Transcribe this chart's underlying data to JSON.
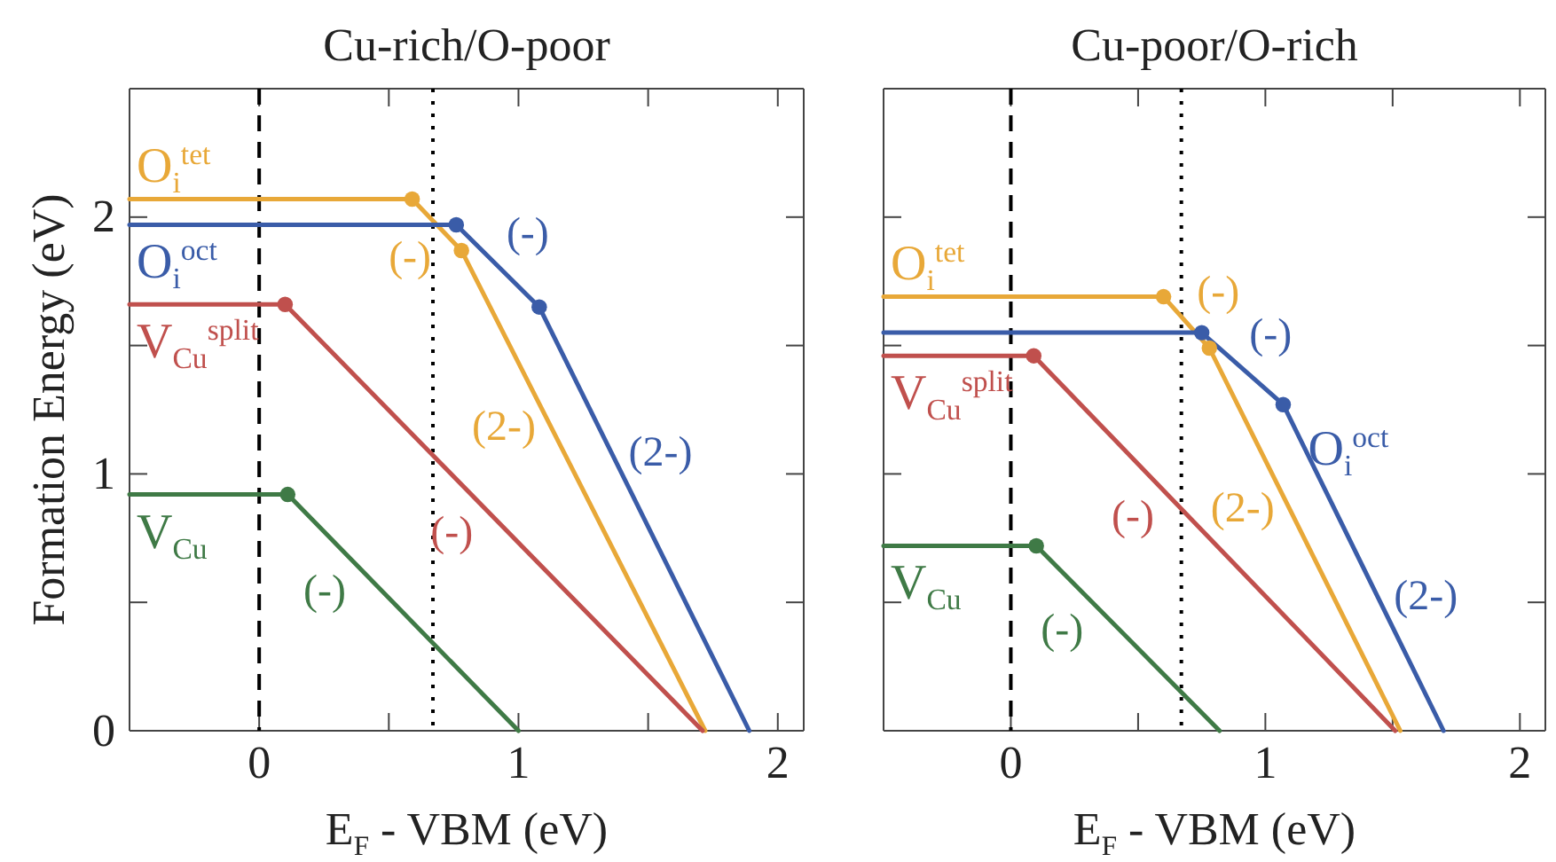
{
  "chart_data": [
    {
      "type": "line",
      "title": "Cu-rich/O-poor",
      "xlabel": "E$_{F}$ - VBM (eV)",
      "ylabel": "Formation Energy (eV)",
      "xlim": [
        -0.5,
        2.1
      ],
      "ylim": [
        0,
        2.5
      ],
      "xticks": [
        {
          "value": -0.5,
          "label": null
        },
        0,
        {
          "value": 0.5,
          "label": null
        },
        1,
        {
          "value": 1.5,
          "label": null
        },
        2
      ],
      "yticks": [
        0,
        {
          "value": 0.5,
          "label": null
        },
        1,
        {
          "value": 1.5,
          "label": null
        },
        2,
        {
          "value": 2.5,
          "label": null
        }
      ],
      "grid": false,
      "legend": false,
      "line_style": "solid",
      "ref_lines": [
        {
          "axis": "x",
          "value": 0,
          "color": "#000000",
          "line_style": "dashed"
        },
        {
          "axis": "x",
          "value": 0.67,
          "color": "#000000",
          "line_style": "dotted"
        }
      ],
      "series": [
        {
          "name": "O$_{i}$$^{tet}$",
          "color": "#e8a838",
          "x": [
            -0.5,
            0.59,
            0.78,
            1.72
          ],
          "values": [
            2.07,
            2.07,
            1.87,
            0
          ]
        },
        {
          "name": "O$_{i}$$^{oct}$",
          "color": "#3a5ca8",
          "x": [
            -0.5,
            0.76,
            1.08,
            1.89
          ],
          "values": [
            1.97,
            1.97,
            1.65,
            0
          ]
        },
        {
          "name": "V$_{Cu}$$^{split}$",
          "color": "#c0504d",
          "x": [
            -0.5,
            0.1,
            1.71
          ],
          "values": [
            1.66,
            1.66,
            0
          ]
        },
        {
          "name": "V$_{Cu}$",
          "color": "#3f7a46",
          "x": [
            -0.5,
            0.11,
            1.0
          ],
          "values": [
            0.92,
            0.92,
            0
          ]
        },
        {
          "type": "scatter",
          "marker": "circle",
          "color": "#e8a838",
          "x": [
            0.59,
            0.78
          ],
          "values": [
            2.07,
            1.87
          ]
        },
        {
          "type": "scatter",
          "marker": "circle",
          "color": "#3a5ca8",
          "x": [
            0.76,
            1.08
          ],
          "values": [
            1.97,
            1.65
          ]
        },
        {
          "type": "scatter",
          "marker": "circle",
          "color": "#c0504d",
          "x": [
            0.1
          ],
          "values": [
            1.66
          ]
        },
        {
          "type": "scatter",
          "marker": "circle",
          "color": "#3f7a46",
          "x": [
            0.11
          ],
          "values": [
            0.92
          ]
        }
      ],
      "annotations": [
        {
          "text": "(-)",
          "x": 0.7,
          "y": 1.95
        },
        {
          "text": "(2-)",
          "x": 1.09,
          "y": 1.25
        },
        {
          "text": "(-)",
          "x": 0.92,
          "y": 1.81
        },
        {
          "text": "(2-)",
          "x": 1.4,
          "y": 1.0
        },
        {
          "text": "(-)",
          "x": 0.86,
          "y": 0.88
        },
        {
          "text": "(-)",
          "x": 0.37,
          "y": 0.65
        }
      ]
    },
    {
      "type": "line",
      "title": "Cu-poor/O-rich",
      "xlabel": "E$_{F}$ - VBM (eV)",
      "xlim": [
        -0.5,
        2.1
      ],
      "ylim": [
        0,
        2.5
      ],
      "tick_labels": "x",
      "xticks": [
        {
          "value": -0.5,
          "label": null
        },
        0,
        {
          "value": 0.5,
          "label": null
        },
        1,
        {
          "value": 1.5,
          "label": null
        },
        2
      ],
      "yticks": [
        0,
        {
          "value": 0.5,
          "label": null
        },
        1,
        {
          "value": 1.5,
          "label": null
        },
        2,
        {
          "value": 2.5,
          "label": null
        }
      ],
      "grid": false,
      "legend": false,
      "line_style": "solid",
      "ref_lines": [
        {
          "axis": "x",
          "value": 0,
          "color": "#000000",
          "line_style": "dashed"
        },
        {
          "axis": "x",
          "value": 0.67,
          "color": "#000000",
          "line_style": "dotted"
        }
      ],
      "series": [
        {
          "name": "O$_{i}$$^{tet}$",
          "color": "#e8a838",
          "x": [
            -0.5,
            0.6,
            0.78,
            1.53
          ],
          "values": [
            1.69,
            1.69,
            1.49,
            0
          ]
        },
        {
          "name": "O$_{i}$$^{oct}$",
          "color": "#3a5ca8",
          "x": [
            -0.5,
            0.75,
            1.07,
            1.7
          ],
          "values": [
            1.55,
            1.55,
            1.27,
            0
          ]
        },
        {
          "name": "V$_{Cu}$$^{split}$",
          "color": "#c0504d",
          "x": [
            -0.5,
            0.09,
            1.51
          ],
          "values": [
            1.46,
            1.46,
            0
          ]
        },
        {
          "name": "V$_{Cu}$",
          "color": "#3f7a46",
          "x": [
            -0.5,
            0.1,
            0.82
          ],
          "values": [
            0.72,
            0.72,
            0
          ]
        },
        {
          "type": "scatter",
          "marker": "circle",
          "color": "#e8a838",
          "x": [
            0.6,
            0.78
          ],
          "values": [
            1.69,
            1.49
          ]
        },
        {
          "type": "scatter",
          "marker": "circle",
          "color": "#3a5ca8",
          "x": [
            0.75,
            1.07
          ],
          "values": [
            1.55,
            1.27
          ]
        },
        {
          "type": "scatter",
          "marker": "circle",
          "color": "#c0504d",
          "x": [
            0.09
          ],
          "values": [
            1.46
          ]
        },
        {
          "type": "scatter",
          "marker": "circle",
          "color": "#3f7a46",
          "x": [
            0.1
          ],
          "values": [
            0.72
          ]
        }
      ],
      "annotations": [
        {
          "text": "(-)",
          "x": 0.69,
          "y": 1.59
        },
        {
          "text": "(-)",
          "x": 0.91,
          "y": 1.41
        },
        {
          "text": "(-)",
          "x": 0.6,
          "y": 0.94
        },
        {
          "text": "(2-)",
          "x": 1.06,
          "y": 0.93
        },
        {
          "text": "(2-)",
          "x": 1.48,
          "y": 0.44
        },
        {
          "text": "(-)",
          "x": 0.32,
          "y": 0.5
        }
      ]
    }
  ]
}
